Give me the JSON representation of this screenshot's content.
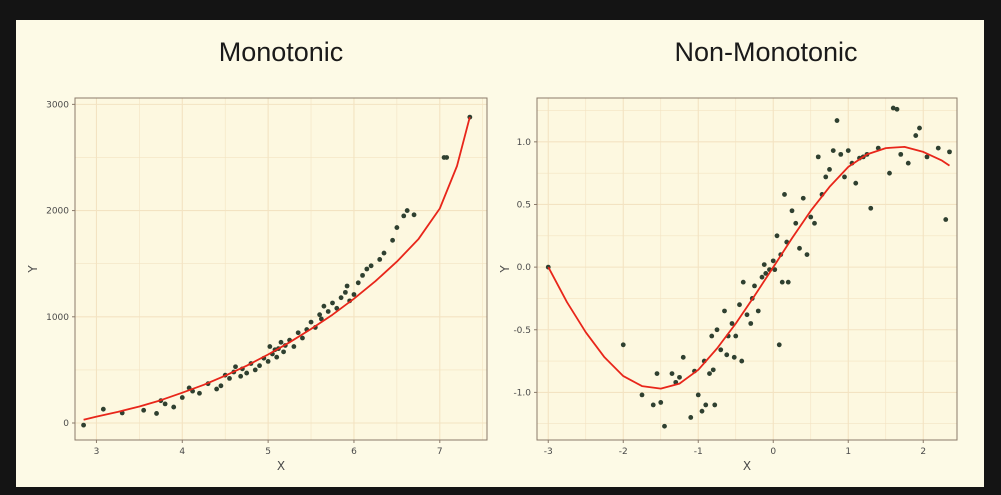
{
  "page": {
    "background": "#141414",
    "panel_background": "#fdfae6",
    "plot_background": "#fdf8e0"
  },
  "style": {
    "curve_color": "#e8261a",
    "point_color": "#2f4030",
    "grid_color": "#f3e3c2",
    "frame_color": "#8a7a6a"
  },
  "chart_data": [
    {
      "type": "scatter",
      "title": "Monotonic",
      "xlabel": "X",
      "ylabel": "Y",
      "xlim": [
        2.75,
        7.55
      ],
      "ylim": [
        -160,
        3060
      ],
      "xticks": [
        3,
        4,
        5,
        6,
        7
      ],
      "yticks": [
        0,
        1000,
        2000,
        3000
      ],
      "grid": true,
      "legend": "none",
      "fit_line": {
        "x": [
          2.85,
          3.0,
          3.25,
          3.5,
          3.75,
          4.0,
          4.25,
          4.5,
          4.75,
          5.0,
          5.25,
          5.5,
          5.75,
          6.0,
          6.25,
          6.5,
          6.75,
          7.0,
          7.2,
          7.35
        ],
        "y": [
          30,
          60,
          105,
          155,
          215,
          285,
          360,
          445,
          540,
          645,
          760,
          885,
          1020,
          1170,
          1335,
          1520,
          1730,
          2020,
          2420,
          2880
        ]
      },
      "points": [
        [
          2.85,
          -20
        ],
        [
          3.08,
          130
        ],
        [
          3.3,
          95
        ],
        [
          3.55,
          120
        ],
        [
          3.7,
          90
        ],
        [
          3.75,
          210
        ],
        [
          3.8,
          180
        ],
        [
          3.9,
          150
        ],
        [
          4.0,
          240
        ],
        [
          4.08,
          330
        ],
        [
          4.12,
          300
        ],
        [
          4.2,
          280
        ],
        [
          4.3,
          370
        ],
        [
          4.4,
          320
        ],
        [
          4.45,
          350
        ],
        [
          4.5,
          450
        ],
        [
          4.55,
          420
        ],
        [
          4.6,
          480
        ],
        [
          4.62,
          530
        ],
        [
          4.68,
          440
        ],
        [
          4.7,
          510
        ],
        [
          4.75,
          470
        ],
        [
          4.8,
          560
        ],
        [
          4.85,
          500
        ],
        [
          4.9,
          540
        ],
        [
          4.95,
          610
        ],
        [
          5.0,
          580
        ],
        [
          5.02,
          720
        ],
        [
          5.05,
          650
        ],
        [
          5.08,
          690
        ],
        [
          5.1,
          620
        ],
        [
          5.12,
          700
        ],
        [
          5.15,
          760
        ],
        [
          5.18,
          670
        ],
        [
          5.2,
          730
        ],
        [
          5.25,
          780
        ],
        [
          5.3,
          720
        ],
        [
          5.35,
          850
        ],
        [
          5.4,
          800
        ],
        [
          5.45,
          880
        ],
        [
          5.5,
          950
        ],
        [
          5.55,
          900
        ],
        [
          5.6,
          1020
        ],
        [
          5.62,
          980
        ],
        [
          5.65,
          1100
        ],
        [
          5.7,
          1050
        ],
        [
          5.75,
          1130
        ],
        [
          5.8,
          1080
        ],
        [
          5.85,
          1180
        ],
        [
          5.9,
          1230
        ],
        [
          5.92,
          1290
        ],
        [
          5.95,
          1150
        ],
        [
          6.0,
          1210
        ],
        [
          6.05,
          1320
        ],
        [
          6.1,
          1390
        ],
        [
          6.15,
          1450
        ],
        [
          6.2,
          1480
        ],
        [
          6.3,
          1540
        ],
        [
          6.35,
          1600
        ],
        [
          6.45,
          1720
        ],
        [
          6.5,
          1840
        ],
        [
          6.58,
          1950
        ],
        [
          6.62,
          2000
        ],
        [
          6.7,
          1960
        ],
        [
          7.05,
          2500
        ],
        [
          7.08,
          2500
        ],
        [
          7.35,
          2880
        ]
      ]
    },
    {
      "type": "scatter",
      "title": "Non-Monotonic",
      "xlabel": "X",
      "ylabel": "Y",
      "xlim": [
        -3.15,
        2.45
      ],
      "ylim": [
        -1.38,
        1.35
      ],
      "xticks": [
        -3,
        -2,
        -1,
        0,
        1,
        2
      ],
      "yticks": [
        -1.0,
        -0.5,
        0.0,
        0.5,
        1.0
      ],
      "grid": true,
      "legend": "none",
      "fit_line": {
        "x": [
          -3.0,
          -2.75,
          -2.5,
          -2.25,
          -2.0,
          -1.75,
          -1.5,
          -1.25,
          -1.0,
          -0.75,
          -0.5,
          -0.25,
          0.0,
          0.25,
          0.5,
          0.75,
          1.0,
          1.25,
          1.5,
          1.75,
          2.0,
          2.25,
          2.35
        ],
        "y": [
          0.0,
          -0.28,
          -0.52,
          -0.72,
          -0.87,
          -0.95,
          -0.97,
          -0.93,
          -0.82,
          -0.65,
          -0.45,
          -0.23,
          0.0,
          0.23,
          0.45,
          0.64,
          0.8,
          0.9,
          0.95,
          0.96,
          0.92,
          0.85,
          0.81
        ]
      },
      "points": [
        [
          -3.0,
          0.0
        ],
        [
          -2.0,
          -0.62
        ],
        [
          -1.75,
          -1.02
        ],
        [
          -1.6,
          -1.1
        ],
        [
          -1.55,
          -0.85
        ],
        [
          -1.5,
          -1.08
        ],
        [
          -1.45,
          -1.27
        ],
        [
          -1.35,
          -0.85
        ],
        [
          -1.3,
          -0.92
        ],
        [
          -1.25,
          -0.88
        ],
        [
          -1.2,
          -0.72
        ],
        [
          -1.1,
          -1.2
        ],
        [
          -1.05,
          -0.83
        ],
        [
          -1.0,
          -1.02
        ],
        [
          -0.95,
          -1.15
        ],
        [
          -0.92,
          -0.75
        ],
        [
          -0.9,
          -1.1
        ],
        [
          -0.85,
          -0.85
        ],
        [
          -0.82,
          -0.55
        ],
        [
          -0.8,
          -0.82
        ],
        [
          -0.78,
          -1.1
        ],
        [
          -0.75,
          -0.5
        ],
        [
          -0.7,
          -0.66
        ],
        [
          -0.65,
          -0.35
        ],
        [
          -0.62,
          -0.7
        ],
        [
          -0.6,
          -0.55
        ],
        [
          -0.55,
          -0.45
        ],
        [
          -0.52,
          -0.72
        ],
        [
          -0.5,
          -0.55
        ],
        [
          -0.45,
          -0.3
        ],
        [
          -0.42,
          -0.75
        ],
        [
          -0.4,
          -0.12
        ],
        [
          -0.35,
          -0.38
        ],
        [
          -0.3,
          -0.45
        ],
        [
          -0.28,
          -0.25
        ],
        [
          -0.25,
          -0.15
        ],
        [
          -0.2,
          -0.35
        ],
        [
          -0.15,
          -0.08
        ],
        [
          -0.12,
          0.02
        ],
        [
          -0.1,
          -0.05
        ],
        [
          -0.05,
          -0.02
        ],
        [
          0.0,
          0.05
        ],
        [
          0.02,
          -0.02
        ],
        [
          0.05,
          0.25
        ],
        [
          0.08,
          -0.62
        ],
        [
          0.1,
          0.1
        ],
        [
          0.12,
          -0.12
        ],
        [
          0.15,
          0.58
        ],
        [
          0.18,
          0.2
        ],
        [
          0.2,
          -0.12
        ],
        [
          0.25,
          0.45
        ],
        [
          0.3,
          0.35
        ],
        [
          0.35,
          0.15
        ],
        [
          0.4,
          0.55
        ],
        [
          0.45,
          0.1
        ],
        [
          0.5,
          0.4
        ],
        [
          0.55,
          0.35
        ],
        [
          0.6,
          0.88
        ],
        [
          0.65,
          0.58
        ],
        [
          0.7,
          0.72
        ],
        [
          0.75,
          0.78
        ],
        [
          0.8,
          0.93
        ],
        [
          0.85,
          1.17
        ],
        [
          0.9,
          0.9
        ],
        [
          0.95,
          0.72
        ],
        [
          1.0,
          0.93
        ],
        [
          1.05,
          0.83
        ],
        [
          1.1,
          0.67
        ],
        [
          1.15,
          0.87
        ],
        [
          1.2,
          0.88
        ],
        [
          1.25,
          0.9
        ],
        [
          1.3,
          0.47
        ],
        [
          1.4,
          0.95
        ],
        [
          1.55,
          0.75
        ],
        [
          1.6,
          1.27
        ],
        [
          1.65,
          1.26
        ],
        [
          1.7,
          0.9
        ],
        [
          1.8,
          0.83
        ],
        [
          1.9,
          1.05
        ],
        [
          1.95,
          1.11
        ],
        [
          2.05,
          0.88
        ],
        [
          2.2,
          0.95
        ],
        [
          2.3,
          0.38
        ],
        [
          2.35,
          0.92
        ]
      ]
    }
  ]
}
